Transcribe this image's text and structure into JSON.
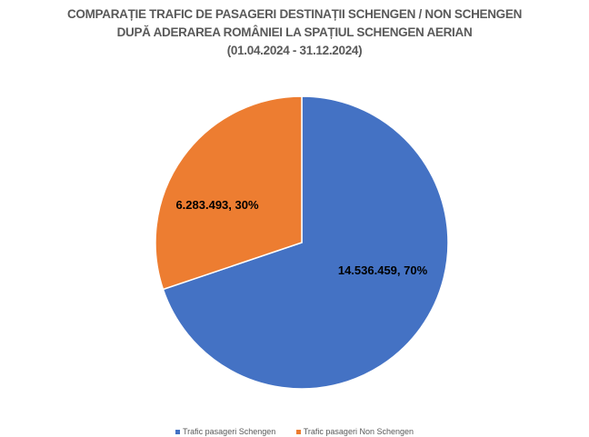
{
  "chart_data": {
    "type": "pie",
    "title": [
      "COMPARAȚIE TRAFIC DE PASAGERI DESTINAȚII SCHENGEN / NON SCHENGEN",
      "DUPĂ ADERAREA ROMÂNIEI LA SPAȚIUL SCHENGEN AERIAN",
      "(01.04.2024 - 31.12.2024)"
    ],
    "categories": [
      "Trafic pasageri Schengen",
      "Trafic pasageri Non Schengen"
    ],
    "values": [
      14536459,
      6283493
    ],
    "percent": [
      70,
      30
    ],
    "data_labels": [
      "14.536.459, 70%",
      "6.283.493, 30%"
    ],
    "colors": [
      "#4472C4",
      "#ED7D31"
    ],
    "legend_position": "bottom"
  }
}
